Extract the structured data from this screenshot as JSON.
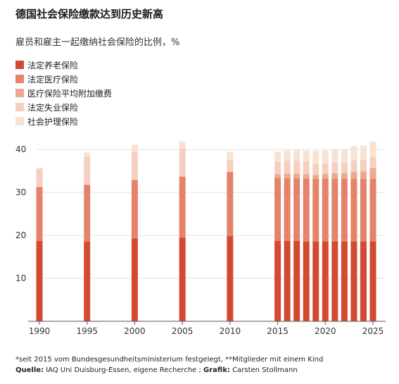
{
  "chart_data": {
    "type": "bar",
    "stacked": true,
    "title": "德国社会保险缴款达到历史新高",
    "subtitle": "雇员和雇主一起缴纳社会保险的比例，%",
    "x": [
      1990,
      1995,
      2000,
      2005,
      2010,
      2015,
      2016,
      2017,
      2018,
      2019,
      2020,
      2021,
      2022,
      2023,
      2024,
      2025
    ],
    "x_tick_labels": [
      "1990",
      "1995",
      "2000",
      "2005",
      "2010",
      "2015",
      "2020",
      "2025"
    ],
    "x_ticks": [
      1990,
      1995,
      2000,
      2005,
      2010,
      2015,
      2020,
      2025
    ],
    "ylim": [
      0,
      42
    ],
    "y_ticks": [
      10,
      20,
      30,
      40
    ],
    "grid": true,
    "legend_position": "top-left",
    "series": [
      {
        "name": "法定养老保险",
        "color": "#d24a32",
        "values": [
          18.7,
          18.6,
          19.3,
          19.5,
          19.9,
          18.7,
          18.7,
          18.7,
          18.6,
          18.6,
          18.6,
          18.6,
          18.6,
          18.6,
          18.6,
          18.6
        ]
      },
      {
        "name": "法定医疗保险",
        "color": "#e4836a",
        "values": [
          12.6,
          13.2,
          13.6,
          14.2,
          14.9,
          14.6,
          14.6,
          14.6,
          14.6,
          14.6,
          14.6,
          14.6,
          14.6,
          14.6,
          14.6,
          14.6
        ]
      },
      {
        "name": "医疗保险平均附加缴费",
        "color": "#eda98f",
        "values": [
          0,
          0,
          0,
          0,
          0,
          0.9,
          1.1,
          1.1,
          1.0,
          0.9,
          1.1,
          1.3,
          1.3,
          1.6,
          1.7,
          2.5
        ]
      },
      {
        "name": "法定失业保险",
        "color": "#f5cfbf",
        "values": [
          4.3,
          6.5,
          6.5,
          6.5,
          2.8,
          3.0,
          3.0,
          3.0,
          3.0,
          2.5,
          2.4,
          2.4,
          2.4,
          2.6,
          2.6,
          2.6
        ]
      },
      {
        "name": "社会护理保险",
        "color": "#f8e3d1",
        "values": [
          0,
          1.0,
          1.7,
          1.7,
          1.9,
          2.35,
          2.35,
          2.55,
          2.55,
          3.05,
          3.05,
          3.05,
          3.05,
          3.4,
          3.4,
          3.6
        ]
      }
    ]
  },
  "footnote": "*seit 2015 vom Bundesgesundheitsministerium festgelegt, **Mitglieder mit einem Kind",
  "source": {
    "label": "Quelle:",
    "text": " IAQ Uni Duisburg-Essen, eigene Recherche ; ",
    "credit_label": "Grafik:",
    "credit": " Carsten Stollmann"
  }
}
